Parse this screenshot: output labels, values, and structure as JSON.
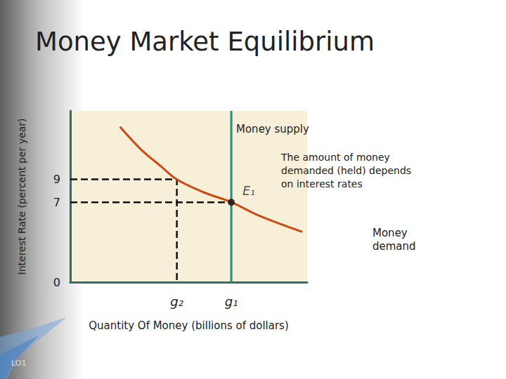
{
  "chart_data": {
    "type": "line",
    "title": "Money Market Equilibrium",
    "x_label": "Quantity Of Money (billions of dollars)",
    "y_label": "Interest Rate (percent per year)",
    "xlim": [
      0,
      10
    ],
    "ylim": [
      0,
      15
    ],
    "xticks": [
      {
        "value": 4.5,
        "label": "g₂"
      },
      {
        "value": 6.8,
        "label": "g₁"
      }
    ],
    "yticks": [
      0,
      7,
      9
    ],
    "grid": false,
    "series": [
      {
        "name": "Money demand",
        "type": "line",
        "color": "#cc4a14",
        "x": [
          2.1,
          3.0,
          3.8,
          4.5,
          5.6,
          6.8,
          8.0,
          9.8
        ],
        "values": [
          13.6,
          11.6,
          10.2,
          9.0,
          7.9,
          7.0,
          5.8,
          4.4
        ]
      },
      {
        "name": "Money supply",
        "type": "line",
        "color": "#2a8a78",
        "x": [
          6.8,
          6.8
        ],
        "values": [
          0,
          15
        ]
      }
    ],
    "reference_lines": [
      {
        "x": [
          0,
          4.5,
          4.5
        ],
        "y": [
          9,
          9,
          0
        ],
        "line_style": "dashed",
        "color": "#111111"
      },
      {
        "x": [
          0,
          6.8
        ],
        "y": [
          7,
          7
        ],
        "line_style": "dashed",
        "color": "#111111"
      }
    ],
    "annotations": [
      {
        "text": "E₁",
        "x": 6.8,
        "y": 7,
        "marker": "circle",
        "color": "#111111"
      },
      {
        "text": "The amount of money demanded (held) depends on interest rates"
      }
    ],
    "footer": "LO1"
  }
}
